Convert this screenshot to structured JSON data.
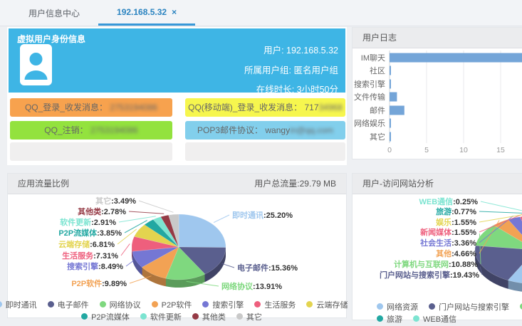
{
  "tabs": [
    {
      "label": "用户信息中心"
    },
    {
      "label": "192.168.5.32",
      "close": "×"
    }
  ],
  "identity": {
    "title": "虚拟用户身份信息",
    "user": "用户: 192.168.5.32",
    "group": "所属用户组: 匿名用户组",
    "online": "在线时长: 3小时50分",
    "badges": [
      {
        "label": "QQ_登录_收发消息：",
        "visible": "",
        "blurred": "2753194086",
        "bg": "#f7a24e"
      },
      {
        "label": "QQ(移动端)_登录_收发消息：",
        "visible": "717",
        "blurred": "34968",
        "bg": "#f6f64e"
      },
      {
        "label": "QQ_注销：",
        "visible": "",
        "blurred": "2753194086",
        "bg": "#93e23e"
      },
      {
        "label": "POP3邮件协议：",
        "visible": "wangy",
        "blurred": "in@qq.com",
        "bg": "#82cfec"
      },
      {
        "label": "",
        "visible": "",
        "blurred": "",
        "bg": "#f0efef"
      },
      {
        "label": "",
        "visible": "",
        "blurred": "",
        "bg": "#f0efef"
      }
    ]
  },
  "userlog": {
    "title": "用户日志"
  },
  "appflow": {
    "title": "应用流量比例",
    "total": "用户总流量:29.79 MB"
  },
  "website": {
    "title": "用户-访问网站分析"
  },
  "colors": {
    "panel_blue": "#3eb5e5",
    "tab_active": "#2a83c0",
    "bar_blue": "#74a5d8"
  },
  "chart_data": [
    {
      "id": "userlog",
      "type": "bar",
      "orientation": "horizontal",
      "title": "用户日志",
      "categories": [
        "IM聊天",
        "社区",
        "搜索引擎",
        "文件传输",
        "邮件",
        "网络娱乐",
        "其它"
      ],
      "values": [
        19,
        0.15,
        0.15,
        1,
        2,
        0.15,
        0.15
      ],
      "xticks": [
        0,
        5,
        10,
        15
      ],
      "xlim": [
        0,
        19
      ],
      "grid": true,
      "bar_color": "#74a5d8"
    },
    {
      "id": "appflow",
      "type": "pie",
      "title": "应用流量比例",
      "subtitle": "用户总流量:29.79 MB",
      "unit": "%",
      "legend_position": "bottom",
      "series": [
        {
          "name": "即时通讯",
          "value": 25.2,
          "color": "#9fc7ee"
        },
        {
          "name": "电子邮件",
          "value": 15.36,
          "color": "#5a5f8e"
        },
        {
          "name": "网络协议",
          "value": 13.91,
          "color": "#7fd87f"
        },
        {
          "name": "P2P软件",
          "value": 9.89,
          "color": "#f2a254"
        },
        {
          "name": "搜索引擎",
          "value": 8.49,
          "color": "#7577d4"
        },
        {
          "name": "生活服务",
          "value": 7.31,
          "color": "#ee5f7d"
        },
        {
          "name": "云端存储",
          "value": 6.81,
          "color": "#e3d44f"
        },
        {
          "name": "P2P流媒体",
          "value": 3.85,
          "color": "#22a8a2"
        },
        {
          "name": "软件更新",
          "value": 2.91,
          "color": "#7ce4d1"
        },
        {
          "name": "其他类",
          "value": 2.78,
          "color": "#953a45"
        },
        {
          "name": "其它",
          "value": 3.49,
          "color": "#c9c9c9"
        }
      ]
    },
    {
      "id": "website",
      "type": "pie",
      "title": "用户-访问网站分析",
      "unit": "%",
      "legend_position": "bottom",
      "series": [
        {
          "name": "网络资源",
          "value": 57.55,
          "color": "#9fc7ee"
        },
        {
          "name": "门户网站与搜索引擎",
          "value": 19.43,
          "color": "#5a5f8e"
        },
        {
          "name": "计算机与互联网",
          "value": 10.88,
          "color": "#7fd87f"
        },
        {
          "name": "其他",
          "value": 4.66,
          "color": "#f2a254"
        },
        {
          "name": "社会生活",
          "value": 3.36,
          "color": "#7577d4"
        },
        {
          "name": "新闻媒体",
          "value": 1.55,
          "color": "#ee5f7d"
        },
        {
          "name": "娱乐",
          "value": 1.55,
          "color": "#e3d44f"
        },
        {
          "name": "旅游",
          "value": 0.77,
          "color": "#22a8a2"
        },
        {
          "name": "WEB通信",
          "value": 0.25,
          "color": "#7ce4d1"
        }
      ]
    }
  ]
}
